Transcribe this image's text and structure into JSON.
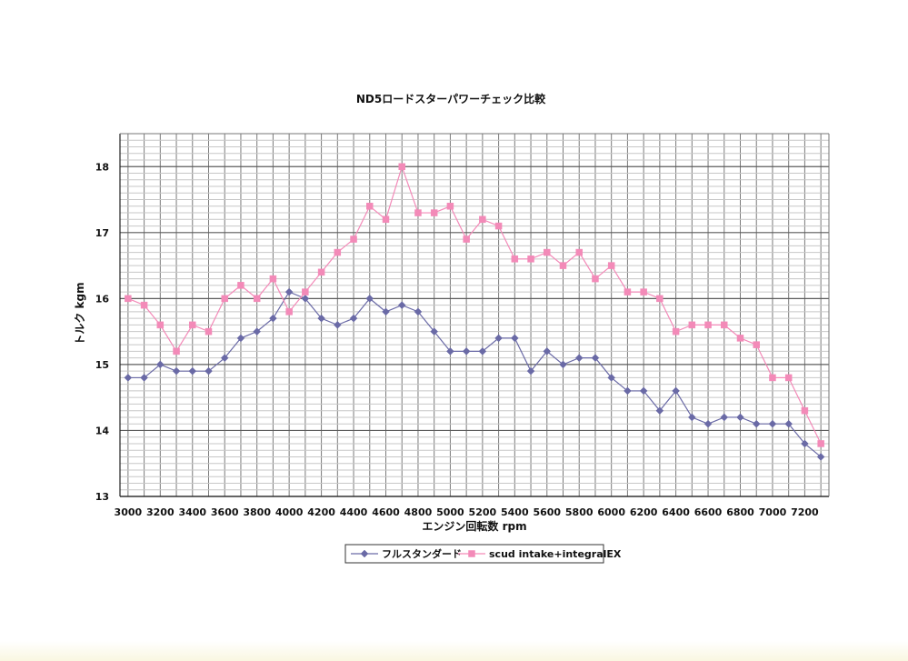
{
  "chart_data": {
    "type": "line",
    "title": "ND5ロードスターパワーチェック比較",
    "xlabel": "エンジン回転数  rpm",
    "ylabel": "トルク  kgm",
    "x": [
      3000,
      3100,
      3200,
      3300,
      3400,
      3500,
      3600,
      3700,
      3800,
      3900,
      4000,
      4100,
      4200,
      4300,
      4400,
      4500,
      4600,
      4700,
      4800,
      4900,
      5000,
      5100,
      5200,
      5300,
      5400,
      5500,
      5600,
      5700,
      5800,
      5900,
      6000,
      6100,
      6200,
      6300,
      6400,
      6500,
      6600,
      6700,
      6800,
      6900,
      7000,
      7100,
      7200,
      7300
    ],
    "x_ticks": [
      "3000",
      "3200",
      "3400",
      "3600",
      "3800",
      "4000",
      "4200",
      "4400",
      "4600",
      "4800",
      "5000",
      "5200",
      "5400",
      "5600",
      "5800",
      "6000",
      "6200",
      "6400",
      "6600",
      "6800",
      "7000",
      "7200"
    ],
    "y_ticks": [
      "13",
      "14",
      "15",
      "16",
      "17",
      "18"
    ],
    "xlim": [
      2950,
      7350
    ],
    "ylim": [
      13,
      18.5
    ],
    "grid": true,
    "legend_position": "bottom",
    "series": [
      {
        "name": "フルスタンダード",
        "color": "#6a6aa6",
        "marker": "diamond",
        "values": [
          14.8,
          14.8,
          15.0,
          14.9,
          14.9,
          14.9,
          15.1,
          15.4,
          15.5,
          15.7,
          16.1,
          16.0,
          15.7,
          15.6,
          15.7,
          16.0,
          15.8,
          15.9,
          15.8,
          15.5,
          15.2,
          15.2,
          15.2,
          15.4,
          15.4,
          14.9,
          15.2,
          15.0,
          15.1,
          15.1,
          14.8,
          14.6,
          14.6,
          14.3,
          14.6,
          14.2,
          14.1,
          14.2,
          14.2,
          14.1,
          14.1,
          14.1,
          13.8,
          13.6
        ]
      },
      {
        "name": "scud intake+integralEX",
        "color": "#f38ab8",
        "marker": "square",
        "values": [
          16.0,
          15.9,
          15.6,
          15.2,
          15.6,
          15.5,
          16.0,
          16.2,
          16.0,
          16.3,
          15.8,
          16.1,
          16.4,
          16.7,
          16.9,
          17.4,
          17.2,
          18.0,
          17.3,
          17.3,
          17.4,
          16.9,
          17.2,
          17.1,
          16.6,
          16.6,
          16.7,
          16.5,
          16.7,
          16.3,
          16.5,
          16.1,
          16.1,
          16.0,
          15.5,
          15.6,
          15.6,
          15.6,
          15.4,
          15.3,
          14.8,
          14.8,
          14.3,
          13.8
        ]
      }
    ]
  }
}
